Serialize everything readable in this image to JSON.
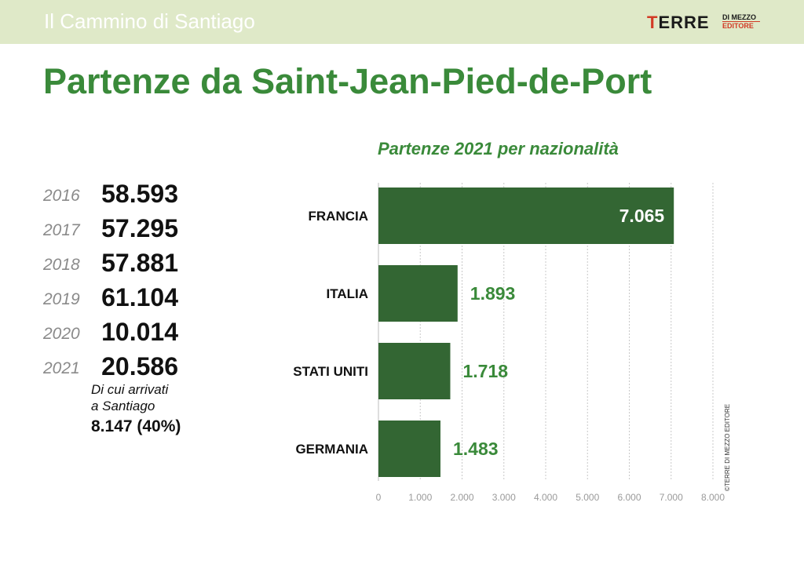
{
  "header": {
    "title": "Il Cammino di Santiago"
  },
  "logo": {
    "main_first": "T",
    "main_rest": "ERRE",
    "sub1": "DI MEZZO",
    "sub2": "EDITORE"
  },
  "main_title": "Partenze da Saint-Jean-Pied-de-Port",
  "yearly": [
    {
      "year": "2016",
      "value": "58.593"
    },
    {
      "year": "2017",
      "value": "57.295"
    },
    {
      "year": "2018",
      "value": "57.881"
    },
    {
      "year": "2019",
      "value": "61.104"
    },
    {
      "year": "2020",
      "value": "10.014"
    },
    {
      "year": "2021",
      "value": "20.586"
    }
  ],
  "note": {
    "line1": "Di cui arrivati",
    "line2": "a Santiago",
    "value": "8.147 (40%)"
  },
  "credit": "©TERRE DI MEZZO EDITORE",
  "colors": {
    "bar": "#336633",
    "title_green": "#3a8a3a",
    "header_bg": "#dfe9c8",
    "logo_red": "#d23a25"
  },
  "chart_data": {
    "type": "bar",
    "orientation": "horizontal",
    "title": "Partenze 2021 per nazionalità",
    "categories": [
      "FRANCIA",
      "ITALIA",
      "STATI UNITI",
      "GERMANIA"
    ],
    "values": [
      7065,
      1893,
      1718,
      1483
    ],
    "value_labels": [
      "7.065",
      "1.893",
      "1.718",
      "1.483"
    ],
    "xlim": [
      0,
      8000
    ],
    "xticks": [
      0,
      1000,
      2000,
      3000,
      4000,
      5000,
      6000,
      7000,
      8000
    ],
    "xtick_labels": [
      "0",
      "1.000",
      "2.000",
      "3.000",
      "4.000",
      "5.000",
      "6.000",
      "7.000",
      "8.000"
    ],
    "grid": true,
    "legend": "none"
  }
}
